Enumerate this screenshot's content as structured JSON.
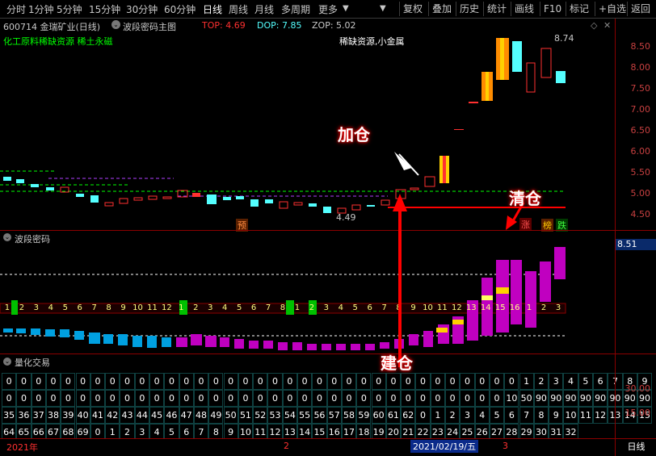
{
  "toolbar": {
    "periods": [
      "分时",
      "1分钟",
      "5分钟",
      "15分钟",
      "30分钟",
      "60分钟",
      "日线",
      "周线",
      "月线",
      "多周期",
      "更多"
    ],
    "active_period": "日线",
    "buttons": [
      "复权",
      "叠加",
      "历史",
      "统计",
      "画线",
      "F10",
      "标记",
      "+自选",
      "返回"
    ]
  },
  "main_chart": {
    "stock_title": "600714 金瑞矿业(日线)",
    "indicator_name": "波段密码主图",
    "top_label": "TOP: 4.69",
    "dop_label": "DOP: 7.85",
    "zop_label": "ZOP: 5.02",
    "concept_tags": "化工原料稀缺资源 稀土永磁",
    "sector_label": "稀缺资源,小金属",
    "high_marker": "8.74",
    "low_marker": "4.49",
    "price_ticks": [
      "8.50",
      "8.00",
      "7.50",
      "7.00",
      "6.50",
      "6.00",
      "5.50",
      "5.00",
      "4.50"
    ],
    "event_labels": {
      "pre": "预",
      "rise": "涨",
      "board": "榜",
      "fall": "跌"
    },
    "callouts": {
      "add": "加仓",
      "clear": "清仓",
      "build": "建仓"
    }
  },
  "wave_panel": {
    "title": "波段密码",
    "current_value": "8.51",
    "counter_row": [
      "1",
      "2",
      "3",
      "4",
      "5",
      "6",
      "7",
      "8",
      "9",
      "10",
      "11",
      "12",
      "1",
      "2",
      "3",
      "4",
      "5",
      "6",
      "7",
      "8",
      "1",
      "2",
      "3",
      "4",
      "5",
      "6",
      "7",
      "8",
      "9",
      "10",
      "11",
      "12",
      "13",
      "14",
      "15",
      "16",
      "1",
      "2",
      "3"
    ]
  },
  "quant_panel": {
    "title": "量化交易",
    "axis_ticks": [
      "30.00",
      "15.00"
    ],
    "rows": [
      [
        "0",
        "0",
        "0",
        "0",
        "0",
        "0",
        "0",
        "0",
        "0",
        "0",
        "0",
        "0",
        "0",
        "0",
        "0",
        "0",
        "0",
        "0",
        "0",
        "0",
        "0",
        "0",
        "0",
        "0",
        "0",
        "0",
        "0",
        "0",
        "0",
        "0",
        "0",
        "0",
        "0",
        "0",
        "0",
        "1",
        "2",
        "3",
        "4",
        "5",
        "6",
        "7",
        "8",
        "9"
      ],
      [
        "0",
        "0",
        "0",
        "0",
        "0",
        "0",
        "0",
        "0",
        "0",
        "0",
        "0",
        "0",
        "0",
        "0",
        "0",
        "0",
        "0",
        "0",
        "0",
        "0",
        "0",
        "0",
        "0",
        "0",
        "0",
        "0",
        "0",
        "0",
        "0",
        "0",
        "0",
        "0",
        "0",
        "0",
        "10",
        "50",
        "90",
        "90",
        "90",
        "90",
        "90",
        "90",
        "90",
        "90"
      ],
      [
        "35",
        "36",
        "37",
        "38",
        "39",
        "40",
        "41",
        "42",
        "43",
        "44",
        "45",
        "46",
        "47",
        "48",
        "49",
        "50",
        "51",
        "52",
        "53",
        "54",
        "55",
        "56",
        "57",
        "58",
        "59",
        "60",
        "61",
        "62",
        "0",
        "1",
        "2",
        "3",
        "4",
        "5",
        "6",
        "7",
        "8",
        "9",
        "10",
        "11",
        "12",
        "13",
        "14",
        "15"
      ],
      [
        "64",
        "65",
        "66",
        "67",
        "68",
        "69",
        "0",
        "1",
        "2",
        "3",
        "4",
        "5",
        "6",
        "7",
        "8",
        "9",
        "10",
        "11",
        "12",
        "13",
        "14",
        "15",
        "16",
        "17",
        "18",
        "19",
        "20",
        "21",
        "22",
        "23",
        "24",
        "25",
        "26",
        "27",
        "28",
        "29",
        "30",
        "31",
        "32"
      ]
    ]
  },
  "date_bar": {
    "start": "2021年",
    "month2": "2",
    "cursor_date": "2021/02/19/五",
    "month3": "3",
    "period_label": "日线"
  },
  "colors": {
    "up_red": "#ff3030",
    "down_cyan": "#54ffff",
    "magenta": "#ff00ff",
    "yellow": "#ffff00",
    "green": "#00ff00",
    "dark_red_border": "#8b0000"
  }
}
